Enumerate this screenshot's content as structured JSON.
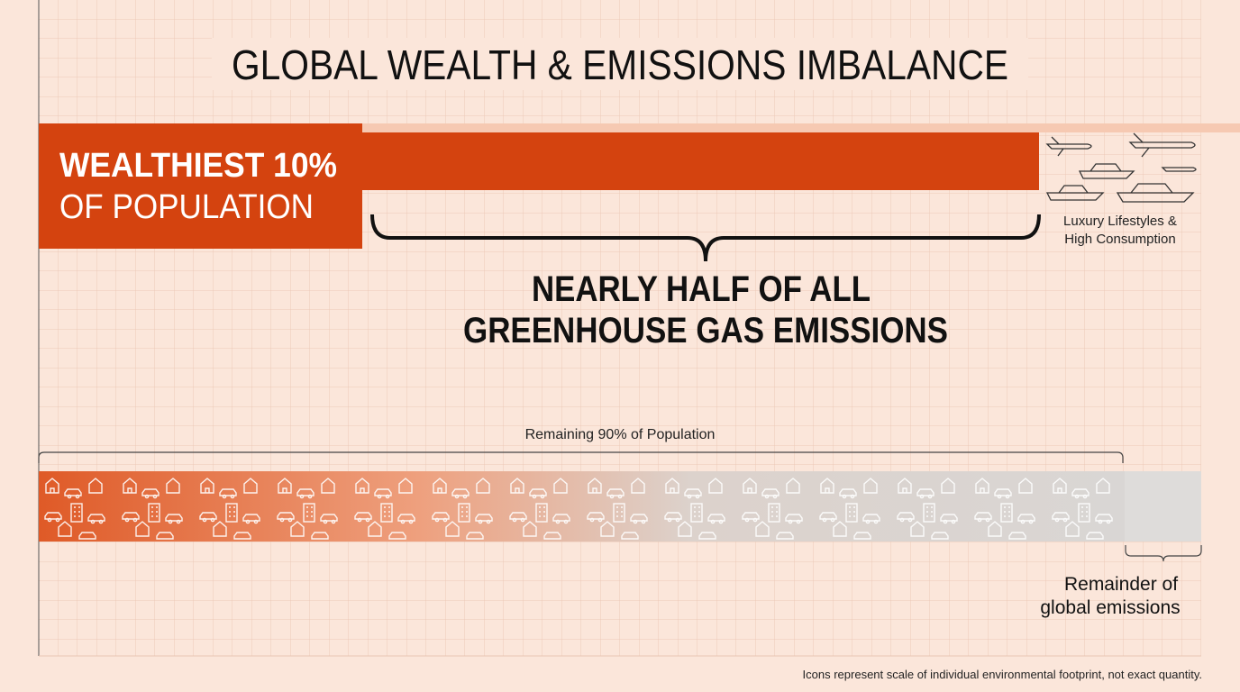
{
  "title": "GLOBAL WEALTH & EMISSIONS IMBALANCE",
  "top_group": {
    "label_bold": "WEALTHIEST 10%",
    "label": "OF POPULATION",
    "icons_caption": [
      "Luxury Lifestyles &",
      "High Consumption"
    ]
  },
  "callout": [
    "NEARLY HALF OF ALL",
    "GREENHOUSE GAS EMISSIONS"
  ],
  "bottom_group": {
    "label": "Remaining 90% of Population",
    "remainder": [
      "Remainder of",
      "global emissions"
    ]
  },
  "footnote": "Icons represent scale of individual environmental footprint, not exact quantity."
}
